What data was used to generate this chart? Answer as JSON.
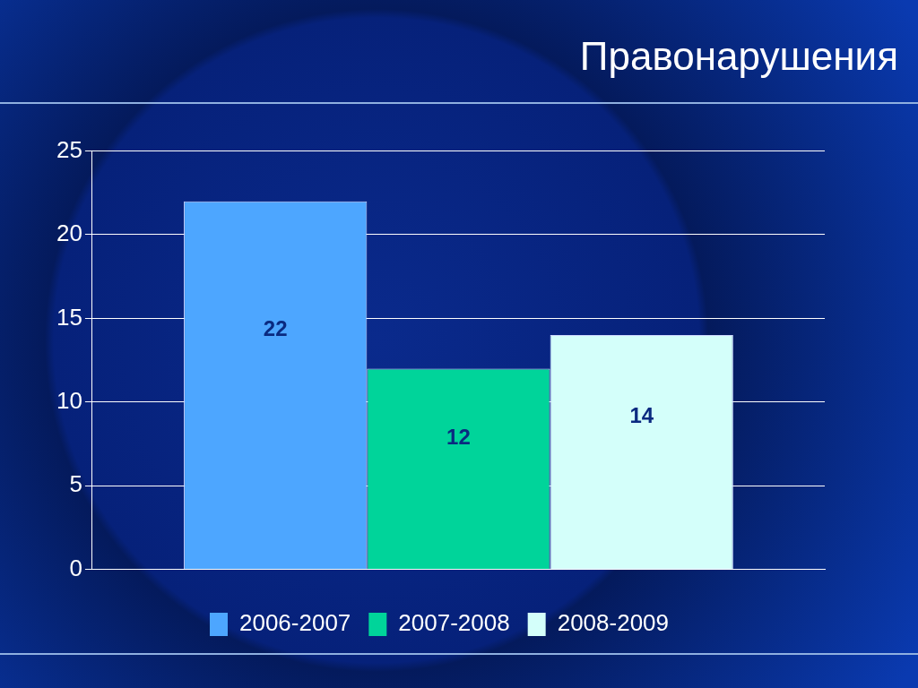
{
  "chart_data": {
    "type": "bar",
    "title": "Правонарушения",
    "categories": [
      null
    ],
    "series": [
      {
        "name": "2006-2007",
        "color": "#4da6ff",
        "values": [
          22
        ]
      },
      {
        "name": "2007-2008",
        "color": "#00d49a",
        "values": [
          12
        ]
      },
      {
        "name": "2008-2009",
        "color": "#d4fffa",
        "values": [
          14
        ]
      }
    ],
    "ylim": [
      0,
      25
    ],
    "yticks": [
      0,
      5,
      10,
      15,
      20,
      25
    ],
    "grid": "y",
    "legend": "bottom",
    "data_labels": true
  }
}
